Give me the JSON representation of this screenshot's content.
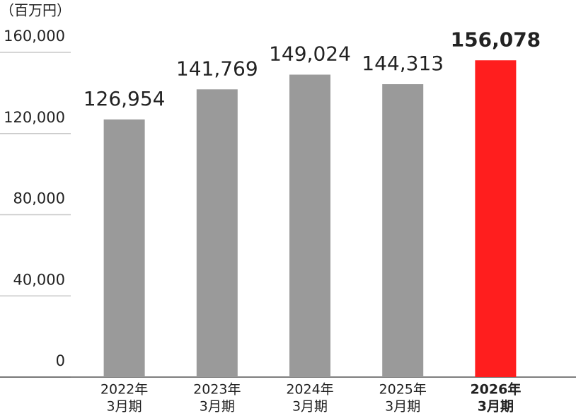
{
  "chart_data": {
    "type": "bar",
    "y_label": "（百万円）",
    "categories": [
      [
        "2022年",
        "3月期"
      ],
      [
        "2023年",
        "3月期"
      ],
      [
        "2024年",
        "3月期"
      ],
      [
        "2025年",
        "3月期"
      ],
      [
        "2026年",
        "3月期"
      ]
    ],
    "values": [
      126954,
      141769,
      149024,
      144313,
      156078
    ],
    "value_labels": [
      "126,954",
      "141,769",
      "149,024",
      "144,313",
      "156,078"
    ],
    "colors": [
      "#9a9a9a",
      "#9a9a9a",
      "#9a9a9a",
      "#9a9a9a",
      "#ff1e1e"
    ],
    "highlight": 4,
    "ylim": [
      0,
      160000
    ],
    "yticks": [
      0,
      {
        "value": 40000,
        "label": "40,000"
      },
      {
        "value": 80000,
        "label": "80,000"
      },
      {
        "value": 120000,
        "label": "120,000"
      },
      {
        "value": 160000,
        "label": "160,000"
      }
    ],
    "grid": true
  }
}
